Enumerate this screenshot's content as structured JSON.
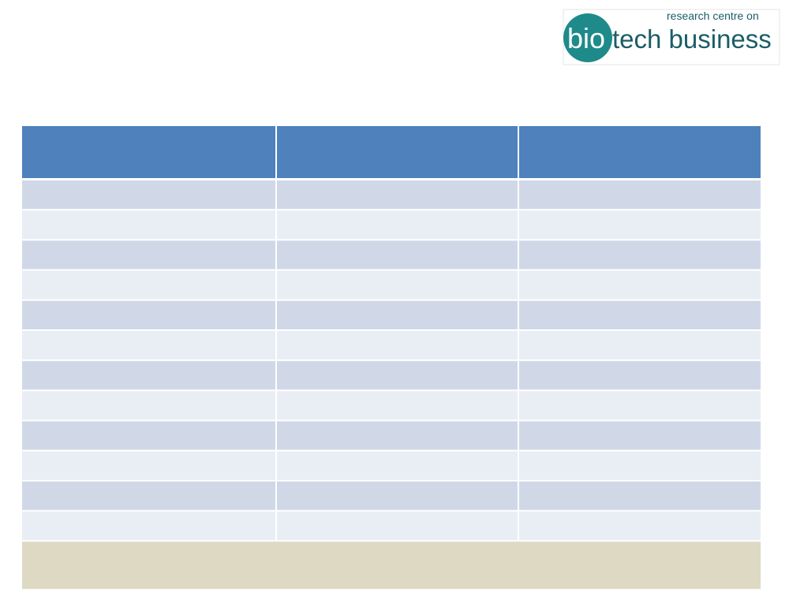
{
  "logo": {
    "tagline": "research centre on",
    "prefix": "bio",
    "name": "tech business"
  }
}
